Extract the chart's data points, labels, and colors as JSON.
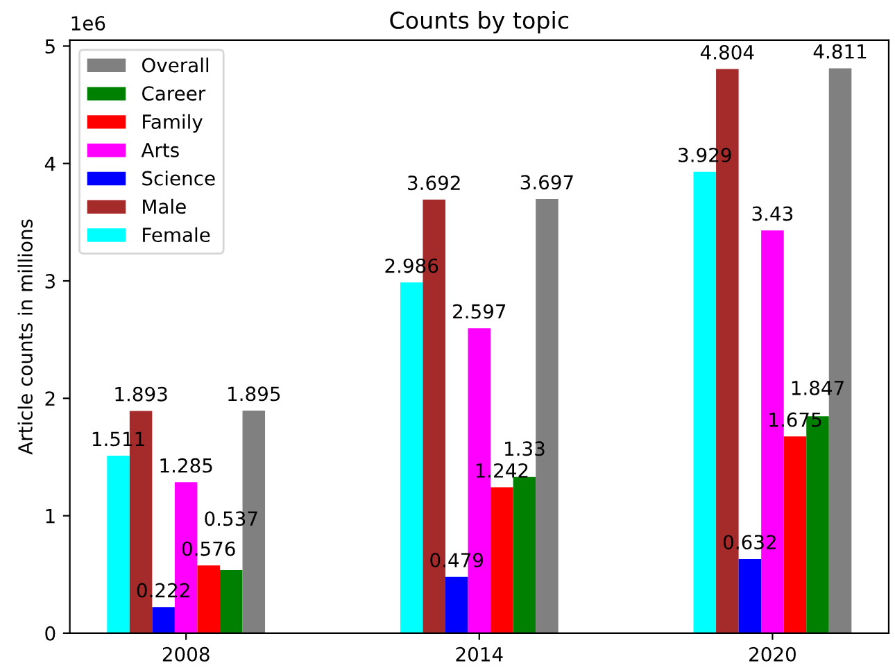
{
  "chart_data": {
    "type": "bar",
    "title": "Counts by topic",
    "ylabel": "Article counts in millions",
    "annotations": [
      "1e6"
    ],
    "categories": [
      "2008",
      "2014",
      "2020"
    ],
    "series": [
      {
        "name": "Female",
        "color": "#00ffff",
        "values": [
          1.511,
          2.986,
          3.929
        ]
      },
      {
        "name": "Male",
        "color": "#a52a2a",
        "values": [
          1.893,
          3.692,
          4.804
        ]
      },
      {
        "name": "Science",
        "color": "#0000ff",
        "values": [
          0.222,
          0.479,
          0.632
        ]
      },
      {
        "name": "Arts",
        "color": "#ff00ff",
        "values": [
          1.285,
          2.597,
          3.43
        ]
      },
      {
        "name": "Family",
        "color": "#ff0000",
        "values": [
          0.576,
          1.242,
          1.675
        ]
      },
      {
        "name": "Career",
        "color": "#008000",
        "values": [
          0.537,
          1.33,
          1.847
        ]
      },
      {
        "name": "Overall",
        "color": "#808080",
        "values": [
          1.895,
          3.697,
          4.811
        ]
      }
    ],
    "ylim": [
      0,
      5.05
    ],
    "yticks": [
      0,
      1,
      2,
      3,
      4,
      5
    ],
    "data_labels": true,
    "grid": false,
    "legend": "top left"
  }
}
